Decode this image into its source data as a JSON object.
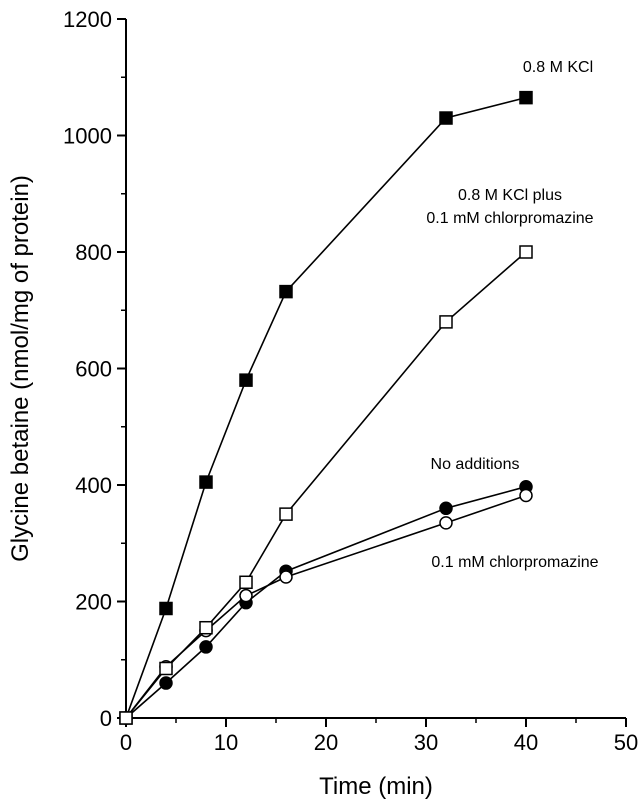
{
  "chart_data": {
    "type": "line",
    "title": "",
    "xlabel": "Time (min)",
    "ylabel": "Glycine betaine (nmol/mg of protein)",
    "xlim": [
      0,
      50
    ],
    "ylim": [
      0,
      1200
    ],
    "xticks": [
      0,
      10,
      20,
      30,
      40,
      50
    ],
    "yticks": [
      0,
      200,
      400,
      600,
      800,
      1000,
      1200
    ],
    "grid": false,
    "legend": "none",
    "series": [
      {
        "name": "0.8 M KCl",
        "marker": "filled-square",
        "x": [
          0,
          4,
          8,
          12,
          16,
          32,
          40
        ],
        "y": [
          0,
          188,
          405,
          580,
          732,
          1030,
          1065
        ]
      },
      {
        "name": "0.8 M KCl plus 0.1 mM chlorpromazine",
        "marker": "open-square",
        "x": [
          0,
          4,
          8,
          12,
          16,
          32,
          40
        ],
        "y": [
          0,
          85,
          155,
          233,
          350,
          680,
          800
        ]
      },
      {
        "name": "No additions",
        "marker": "filled-circle",
        "x": [
          0,
          4,
          8,
          12,
          16,
          32,
          40
        ],
        "y": [
          0,
          60,
          122,
          198,
          252,
          360,
          397
        ]
      },
      {
        "name": "0.1 mM chlorpromazine",
        "marker": "open-circle",
        "x": [
          0,
          4,
          8,
          12,
          16,
          32,
          40
        ],
        "y": [
          0,
          88,
          150,
          210,
          242,
          335,
          382
        ]
      }
    ],
    "annotations": [
      {
        "lines": [
          "0.8 M KCl"
        ],
        "series": 0
      },
      {
        "lines": [
          "0.8 M KCl plus",
          "0.1 mM chlorpromazine"
        ],
        "series": 1
      },
      {
        "lines": [
          "No additions"
        ],
        "series": 2
      },
      {
        "lines": [
          "0.1 mM chlorpromazine"
        ],
        "series": 3
      }
    ]
  }
}
